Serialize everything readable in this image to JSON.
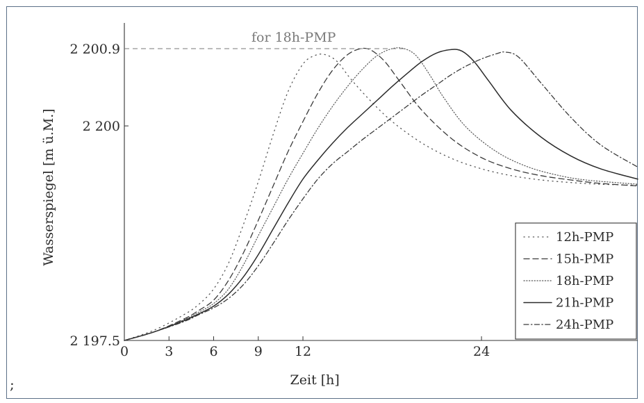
{
  "trailing_text": ";",
  "chart_data": {
    "type": "line",
    "xlabel": "Zeit [h]",
    "ylabel": "Wasserspiegel [m ü.M.]",
    "xlim": [
      0,
      34.5
    ],
    "ylim": [
      2197.5,
      2201.3
    ],
    "xticks": [
      0,
      3,
      6,
      9,
      12,
      24
    ],
    "xtick_labels": [
      "0",
      "3",
      "6",
      "9",
      "12",
      "24"
    ],
    "yticks": [
      2197.5,
      2200,
      2200.9
    ],
    "ytick_labels": [
      "2 197.5",
      "2 200",
      "2 200.9"
    ],
    "grid": false,
    "legend_position": "right-lower",
    "annotation": {
      "text": "for 18h-PMP",
      "y": 2200.9,
      "x_range": [
        0,
        18.8
      ]
    },
    "series": [
      {
        "name": "12h-PMP",
        "style": "loosely-dotted",
        "x": [
          0,
          2,
          4,
          5,
          6,
          7,
          8,
          9,
          10,
          11,
          12,
          12.8,
          13.5,
          14.3,
          15.2,
          16.5,
          18,
          20,
          22,
          24,
          26,
          28,
          30,
          32,
          34.5
        ],
        "y": [
          2197.5,
          2197.62,
          2197.8,
          2197.92,
          2198.1,
          2198.4,
          2198.85,
          2199.35,
          2199.9,
          2200.4,
          2200.72,
          2200.82,
          2200.83,
          2200.75,
          2200.55,
          2200.3,
          2200.05,
          2199.8,
          2199.62,
          2199.5,
          2199.42,
          2199.37,
          2199.34,
          2199.32,
          2199.31
        ]
      },
      {
        "name": "15h-PMP",
        "style": "dashed",
        "x": [
          0,
          2,
          4,
          5,
          6,
          7,
          8,
          9,
          10,
          11,
          12,
          13,
          14,
          15,
          15.9,
          16.6,
          17.5,
          18.5,
          20,
          22,
          24,
          26,
          28,
          30,
          32,
          34.5
        ],
        "y": [
          2197.5,
          2197.6,
          2197.75,
          2197.85,
          2197.97,
          2198.2,
          2198.52,
          2198.9,
          2199.3,
          2199.7,
          2200.05,
          2200.38,
          2200.65,
          2200.83,
          2200.9,
          2200.88,
          2200.75,
          2200.52,
          2200.18,
          2199.85,
          2199.63,
          2199.5,
          2199.42,
          2199.37,
          2199.33,
          2199.3
        ]
      },
      {
        "name": "18h-PMP",
        "style": "densely-dotted",
        "x": [
          0,
          2,
          4,
          5,
          6,
          7,
          8,
          9,
          10,
          11,
          12,
          13,
          14,
          15,
          16,
          17,
          18,
          18.8,
          19.6,
          20.5,
          21.5,
          23,
          25,
          27,
          29,
          31,
          34.5
        ],
        "y": [
          2197.5,
          2197.6,
          2197.74,
          2197.83,
          2197.93,
          2198.1,
          2198.38,
          2198.72,
          2199.05,
          2199.38,
          2199.68,
          2199.97,
          2200.23,
          2200.46,
          2200.66,
          2200.82,
          2200.9,
          2200.9,
          2200.82,
          2200.6,
          2200.32,
          2199.98,
          2199.7,
          2199.53,
          2199.43,
          2199.37,
          2199.32
        ]
      },
      {
        "name": "21h-PMP",
        "style": "solid",
        "x": [
          0,
          2,
          4,
          5,
          6,
          7,
          8,
          9,
          10,
          11,
          12,
          13,
          14,
          15,
          16,
          17,
          18,
          19,
          20,
          21,
          22,
          22.7,
          23.5,
          24.5,
          26,
          28,
          30,
          32,
          34.5
        ],
        "y": [
          2197.5,
          2197.6,
          2197.73,
          2197.81,
          2197.9,
          2198.04,
          2198.24,
          2198.5,
          2198.8,
          2199.1,
          2199.38,
          2199.6,
          2199.8,
          2199.98,
          2200.14,
          2200.3,
          2200.46,
          2200.61,
          2200.75,
          2200.85,
          2200.89,
          2200.87,
          2200.75,
          2200.52,
          2200.18,
          2199.87,
          2199.65,
          2199.5,
          2199.38
        ]
      },
      {
        "name": "24h-PMP",
        "style": "dash-dot",
        "x": [
          0,
          2,
          4,
          5,
          6,
          7,
          8,
          9,
          10,
          11,
          12,
          13,
          14,
          15,
          16,
          17,
          18,
          19,
          20,
          21,
          22,
          23,
          24,
          25,
          25.6,
          26.5,
          28,
          30,
          32,
          34.5
        ],
        "y": [
          2197.5,
          2197.6,
          2197.72,
          2197.8,
          2197.88,
          2197.99,
          2198.15,
          2198.37,
          2198.63,
          2198.9,
          2199.15,
          2199.38,
          2199.56,
          2199.7,
          2199.84,
          2199.97,
          2200.1,
          2200.23,
          2200.36,
          2200.48,
          2200.6,
          2200.7,
          2200.78,
          2200.84,
          2200.86,
          2200.8,
          2200.5,
          2200.1,
          2199.78,
          2199.52
        ]
      }
    ]
  }
}
